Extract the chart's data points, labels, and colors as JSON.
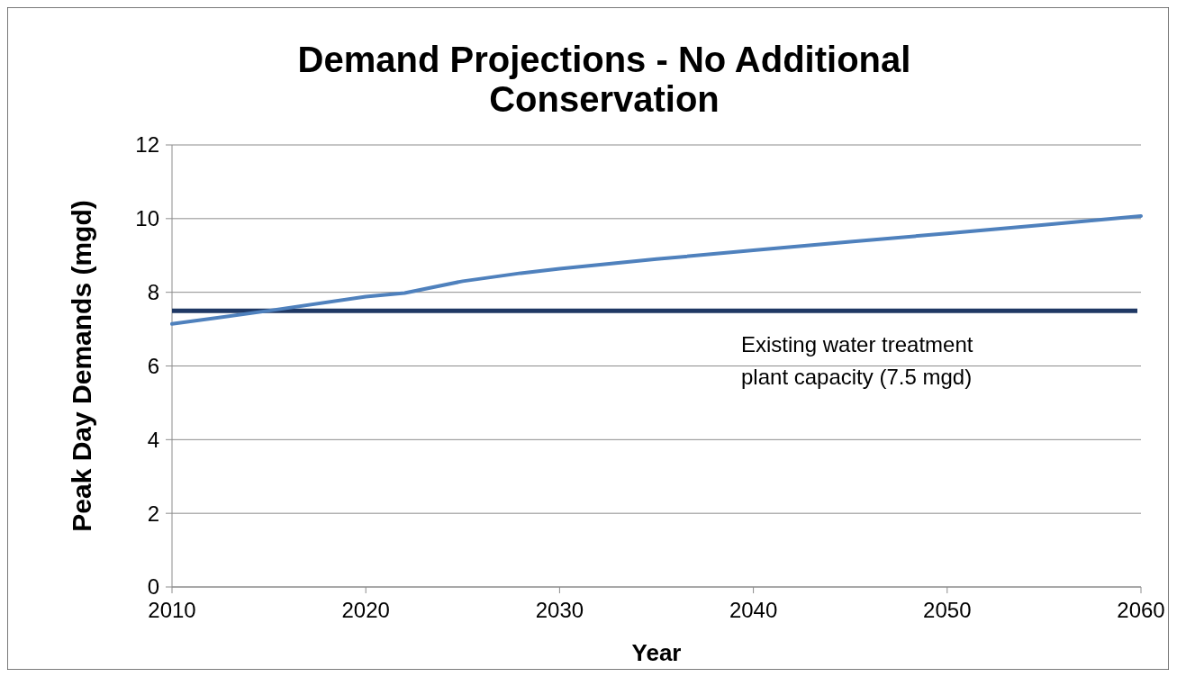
{
  "chart_data": {
    "type": "line",
    "title": "Demand Projections - No Additional Conservation",
    "xlabel": "Year",
    "ylabel": "Peak Day Demands (mgd)",
    "x": [
      2010,
      2015,
      2020,
      2022,
      2025,
      2028,
      2030,
      2035,
      2040,
      2045,
      2050,
      2055,
      2060
    ],
    "series": [
      {
        "color": "#4f81bd",
        "values": [
          7.14,
          7.5,
          7.88,
          7.98,
          8.3,
          8.52,
          8.64,
          8.9,
          9.14,
          9.37,
          9.6,
          9.83,
          10.07
        ]
      }
    ],
    "xlim": [
      2010,
      2060
    ],
    "xticks": [
      2010,
      2020,
      2030,
      2040,
      2050,
      2060
    ],
    "ylim": [
      0,
      12
    ],
    "yticks": [
      0,
      2,
      4,
      6,
      8,
      10,
      12
    ],
    "grid": "y",
    "line_style": "solid",
    "ref_lines": [
      {
        "axis": "y",
        "value": 7.5,
        "label": "Existing water treatment plant capacity (7.5 mgd)",
        "color": "#1f3864"
      }
    ]
  }
}
